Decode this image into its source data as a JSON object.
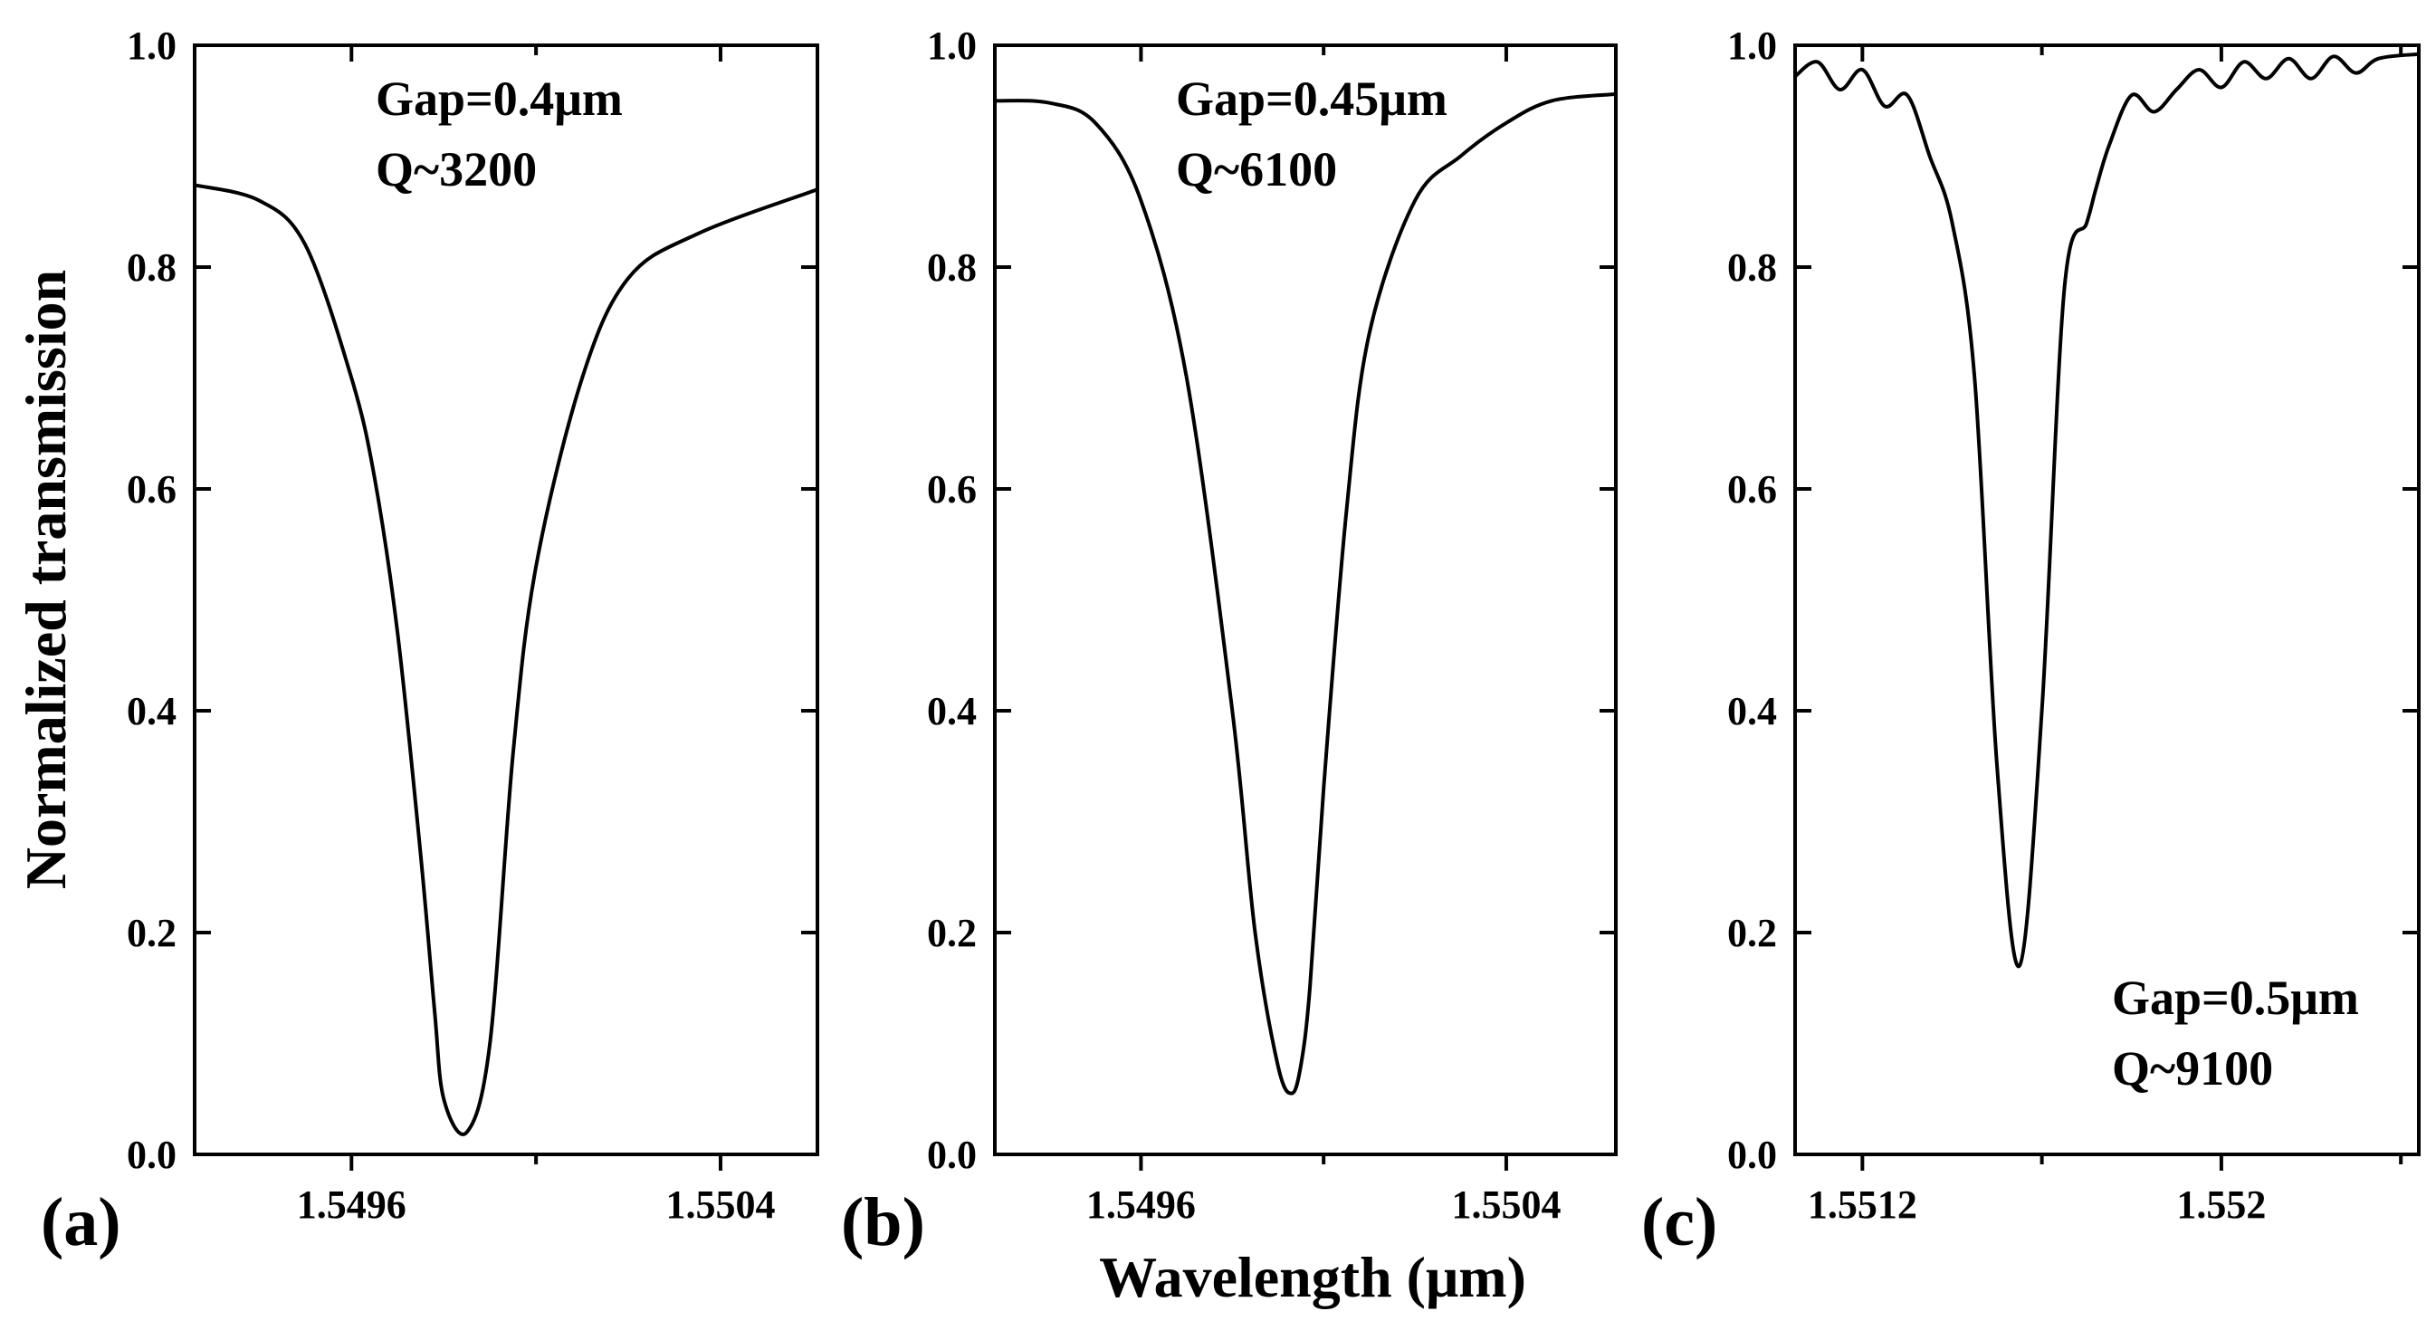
{
  "figure": {
    "ylabel": "Normalized transmission",
    "xlabel": "Wavelength (μm)"
  },
  "chart_data": [
    {
      "type": "line",
      "panel": "(a)",
      "annotation": [
        "Gap=0.4μm",
        "Q~3200"
      ],
      "annotation_pos": "top-center",
      "xlim": [
        1.54926,
        1.55061
      ],
      "ylim": [
        0.0,
        1.0
      ],
      "xticks": [
        1.5496,
        1.5504
      ],
      "yticks": [
        0.0,
        0.2,
        0.4,
        0.6,
        0.8,
        1.0
      ],
      "series": [
        {
          "name": "transmission",
          "x": [
            1.54926,
            1.5494,
            1.5495,
            1.5496,
            1.54965,
            1.5497,
            1.54975,
            1.54978,
            1.5498,
            1.54985,
            1.5499,
            1.54995,
            1.55,
            1.5501,
            1.5502,
            1.55035,
            1.55061
          ],
          "y": [
            0.874,
            0.86,
            0.82,
            0.7,
            0.61,
            0.47,
            0.27,
            0.13,
            0.05,
            0.02,
            0.1,
            0.36,
            0.53,
            0.7,
            0.79,
            0.83,
            0.87
          ]
        }
      ]
    },
    {
      "type": "line",
      "panel": "(b)",
      "annotation": [
        "Gap=0.45μm",
        "Q~6100"
      ],
      "annotation_pos": "top-center",
      "xlim": [
        1.54928,
        1.55064
      ],
      "ylim": [
        0.0,
        1.0
      ],
      "xticks": [
        1.5496,
        1.5504
      ],
      "yticks": [
        0.0,
        0.2,
        0.4,
        0.6,
        0.8,
        1.0
      ],
      "series": [
        {
          "name": "transmission",
          "x": [
            1.54928,
            1.5494,
            1.5495,
            1.5496,
            1.5497,
            1.5498,
            1.54985,
            1.5499,
            1.54993,
            1.54995,
            1.54997,
            1.55,
            1.55005,
            1.5501,
            1.5502,
            1.5503,
            1.5504,
            1.5505,
            1.55064
          ],
          "y": [
            0.95,
            0.948,
            0.93,
            0.86,
            0.7,
            0.4,
            0.2,
            0.08,
            0.055,
            0.08,
            0.15,
            0.33,
            0.58,
            0.74,
            0.86,
            0.9,
            0.93,
            0.95,
            0.956
          ]
        }
      ]
    },
    {
      "type": "line",
      "panel": "(c)",
      "annotation": [
        "Gap=0.5μm",
        "Q~9100"
      ],
      "annotation_pos": "bottom-right",
      "xlim": [
        1.55105,
        1.55244
      ],
      "ylim": [
        0.0,
        1.0
      ],
      "xticks": [
        1.5512,
        1.552
      ],
      "yticks": [
        0.0,
        0.2,
        0.4,
        0.6,
        0.8,
        1.0
      ],
      "series": [
        {
          "name": "transmission",
          "x": [
            1.55105,
            1.5511,
            1.55115,
            1.5512,
            1.55125,
            1.5513,
            1.55135,
            1.5514,
            1.55145,
            1.5515,
            1.55155,
            1.5516,
            1.55165,
            1.5517,
            1.55172,
            1.55175,
            1.5518,
            1.55185,
            1.5519,
            1.55195,
            1.552,
            1.55205,
            1.5521,
            1.55215,
            1.5522,
            1.55225,
            1.5523,
            1.55235,
            1.55244
          ],
          "y": [
            0.972,
            0.985,
            0.96,
            0.978,
            0.945,
            0.955,
            0.9,
            0.84,
            0.7,
            0.35,
            0.17,
            0.4,
            0.78,
            0.84,
            0.87,
            0.91,
            0.955,
            0.94,
            0.96,
            0.978,
            0.962,
            0.985,
            0.97,
            0.988,
            0.97,
            0.99,
            0.975,
            0.988,
            0.992
          ]
        }
      ]
    }
  ]
}
